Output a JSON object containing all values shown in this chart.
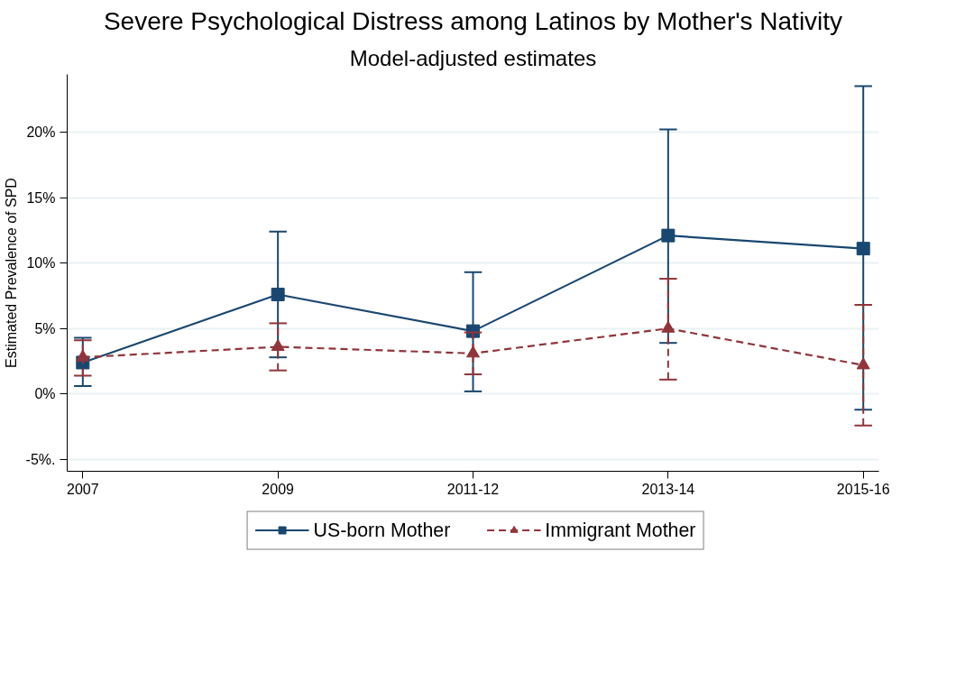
{
  "chart_data": {
    "type": "line",
    "title": "Severe Psychological Distress among Latinos by Mother's Nativity",
    "subtitle": "Model-adjusted estimates",
    "ylabel": "Estimated Prevalence of SPD",
    "categories": [
      "2007",
      "2009",
      "2011-12",
      "2013-14",
      "2015-16"
    ],
    "series": [
      {
        "name": "US-born Mother",
        "color": "#1a476f",
        "marker": "square",
        "line_style": "solid",
        "values": [
          2.4,
          7.6,
          4.8,
          12.1,
          11.1
        ],
        "errors": [
          [
            0.6,
            4.3
          ],
          [
            2.8,
            12.4
          ],
          [
            0.2,
            9.3
          ],
          [
            3.9,
            20.2
          ],
          [
            -1.2,
            23.5
          ]
        ]
      },
      {
        "name": "Immigrant Mother",
        "color": "#90353b",
        "marker": "triangle",
        "line_style": "dashed",
        "values": [
          2.8,
          3.6,
          3.1,
          5.0,
          2.2
        ],
        "errors": [
          [
            1.4,
            4.1
          ],
          [
            1.8,
            5.4
          ],
          [
            1.5,
            4.7
          ],
          [
            1.1,
            8.8
          ],
          [
            -2.4,
            6.8
          ]
        ]
      }
    ],
    "ylim": [
      -5.9,
      24.4
    ],
    "yticks": [
      {
        "value": -5,
        "label": "-5%."
      },
      {
        "value": 0,
        "label": "0%"
      },
      {
        "value": 5,
        "label": "5%"
      },
      {
        "value": 10,
        "label": "10%"
      },
      {
        "value": 15,
        "label": "15%"
      },
      {
        "value": 20,
        "label": "20%"
      }
    ],
    "grid": "y",
    "legend": "bottom"
  }
}
